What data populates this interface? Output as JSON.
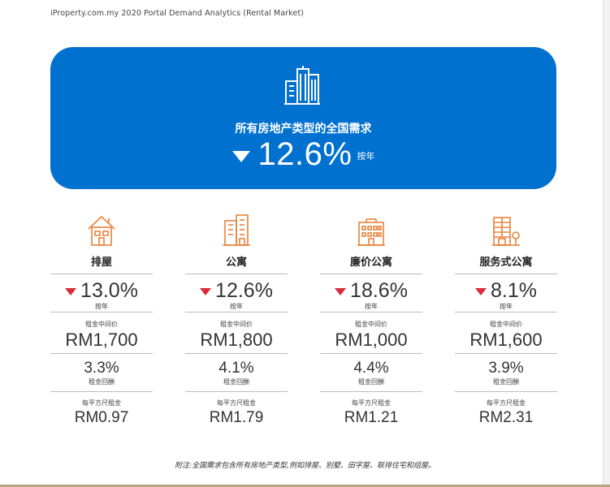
{
  "source": "iProperty.com.my 2020 Portal Demand Analytics (Rental Market)",
  "hero": {
    "icon": "buildings-icon",
    "title": "所有房地产类型的全国需求",
    "value": "12.6%",
    "unit": "按年",
    "trend": "down"
  },
  "colors": {
    "hero_bg": "#0071cf",
    "accent": "#e8823a",
    "down": "#d92b3b"
  },
  "columns": [
    {
      "icon": "terrace-house-icon",
      "title": "排屋",
      "change": "13.0%",
      "change_unit": "按年",
      "median_label": "租金中间价",
      "median": "RM1,700",
      "yield": "3.3%",
      "yield_label": "租金回酬",
      "psf_label": "每平方尺租金",
      "psf": "RM0.97"
    },
    {
      "icon": "apartment-icon",
      "title": "公寓",
      "change": "12.6%",
      "change_unit": "按年",
      "median_label": "租金中间价",
      "median": "RM1,800",
      "yield": "4.1%",
      "yield_label": "租金回酬",
      "psf_label": "每平方尺租金",
      "psf": "RM1.79"
    },
    {
      "icon": "low-cost-flat-icon",
      "title": "廉价公寓",
      "change": "18.6%",
      "change_unit": "按年",
      "median_label": "租金中间价",
      "median": "RM1,000",
      "yield": "4.4%",
      "yield_label": "租金回酬",
      "psf_label": "每平方尺租金",
      "psf": "RM1.21"
    },
    {
      "icon": "serviced-apartment-icon",
      "title": "服务式公寓",
      "change": "8.1%",
      "change_unit": "按年",
      "median_label": "租金中间价",
      "median": "RM1,600",
      "yield": "3.9%",
      "yield_label": "租金回酬",
      "psf_label": "每平方尺租金",
      "psf": "RM2.31"
    }
  ],
  "note": "附注:全国需求包含所有房地产类型,例如排屋、别墅、田字屋、联排住宅和组屋。"
}
